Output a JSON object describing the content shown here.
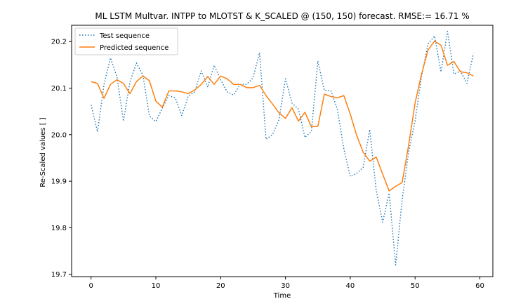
{
  "chart_data": {
    "type": "line",
    "title": "ML LSTM Multvar. INTPP to MLOTST &  K_SCALED @ (150, 150) forecast. RMSE:=  16.71 %",
    "xlabel": "Time",
    "ylabel": "Re-Scaled values [ ]",
    "xlim": [
      -3,
      62
    ],
    "ylim": [
      19.695,
      20.235
    ],
    "xticks": [
      0,
      10,
      20,
      30,
      40,
      50,
      60
    ],
    "yticks": [
      19.7,
      19.8,
      19.9,
      20.0,
      20.1,
      20.2
    ],
    "ytick_labels": [
      "19.7",
      "19.8",
      "19.9",
      "20.0",
      "20.1",
      "20.2"
    ],
    "grid": false,
    "legend_position": "top-left",
    "x": [
      0,
      1,
      2,
      3,
      4,
      5,
      6,
      7,
      8,
      9,
      10,
      11,
      12,
      13,
      14,
      15,
      16,
      17,
      18,
      19,
      20,
      21,
      22,
      23,
      24,
      25,
      26,
      27,
      28,
      29,
      30,
      31,
      32,
      33,
      34,
      35,
      36,
      37,
      38,
      39,
      40,
      41,
      42,
      43,
      44,
      45,
      46,
      47,
      48,
      49,
      50,
      51,
      52,
      53,
      54,
      55,
      56,
      57,
      58,
      59
    ],
    "series": [
      {
        "name": "Test sequence",
        "color": "#1f77b4",
        "style": "dotted",
        "values": [
          20.064,
          20.006,
          20.108,
          20.165,
          20.124,
          20.029,
          20.113,
          20.154,
          20.128,
          20.04,
          20.028,
          20.057,
          20.084,
          20.079,
          20.041,
          20.083,
          20.092,
          20.137,
          20.102,
          20.149,
          20.118,
          20.092,
          20.085,
          20.108,
          20.108,
          20.122,
          20.176,
          19.99,
          20.0,
          20.032,
          20.12,
          20.068,
          20.055,
          19.994,
          20.007,
          20.158,
          20.095,
          20.095,
          20.055,
          19.97,
          19.91,
          19.917,
          19.93,
          20.011,
          19.88,
          19.812,
          19.874,
          19.72,
          19.86,
          19.962,
          20.03,
          20.125,
          20.195,
          20.212,
          20.135,
          20.222,
          20.13,
          20.137,
          20.11,
          20.174
        ]
      },
      {
        "name": "Predicted sequence",
        "color": "#ff7f0e",
        "style": "solid",
        "values": [
          20.114,
          20.11,
          20.078,
          20.108,
          20.118,
          20.11,
          20.088,
          20.114,
          20.126,
          20.116,
          20.072,
          20.059,
          20.094,
          20.094,
          20.092,
          20.088,
          20.096,
          20.108,
          20.125,
          20.108,
          20.126,
          20.12,
          20.108,
          20.108,
          20.101,
          20.101,
          20.106,
          20.084,
          20.066,
          20.047,
          20.035,
          20.058,
          20.029,
          20.048,
          20.017,
          20.018,
          20.087,
          20.082,
          20.079,
          20.084,
          20.044,
          19.998,
          19.962,
          19.943,
          19.952,
          19.915,
          19.879,
          19.889,
          19.897,
          19.977,
          20.068,
          20.13,
          20.182,
          20.201,
          20.192,
          20.149,
          20.157,
          20.135,
          20.133,
          20.126
        ]
      }
    ]
  }
}
